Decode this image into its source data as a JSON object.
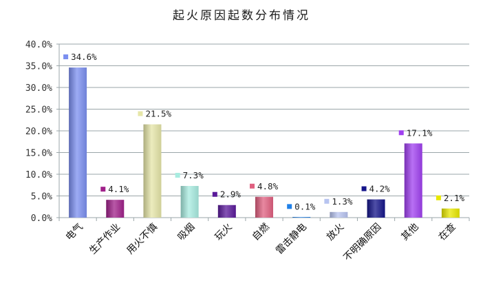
{
  "chart_data": {
    "type": "bar",
    "title": "起火原因起数分布情况",
    "xlabel": "",
    "ylabel": "",
    "ylim": [
      0,
      40
    ],
    "yticks": [
      "0.0%",
      "5.0%",
      "10.0%",
      "15.0%",
      "20.0%",
      "25.0%",
      "30.0%",
      "35.0%",
      "40.0%"
    ],
    "grid": true,
    "legend": "none",
    "categories": [
      "电气",
      "生产作业",
      "用火不慎",
      "吸烟",
      "玩火",
      "自燃",
      "雷击静电",
      "放火",
      "不明确原因",
      "其他",
      "在查"
    ],
    "values": [
      34.6,
      4.1,
      21.5,
      7.3,
      2.9,
      4.8,
      0.1,
      1.3,
      4.2,
      17.1,
      2.1
    ],
    "data_labels": [
      "34.6%",
      "4.1%",
      "21.5%",
      "7.3%",
      "2.9%",
      "4.8%",
      "0.1%",
      "1.3%",
      "4.2%",
      "17.1%",
      "2.1%"
    ],
    "colors": [
      "#7b8ff0",
      "#a0208a",
      "#e6e6a8",
      "#a8ece0",
      "#5a1a9a",
      "#e06080",
      "#2080e8",
      "#b8c4f0",
      "#14148a",
      "#a040f0",
      "#e8e800"
    ]
  }
}
